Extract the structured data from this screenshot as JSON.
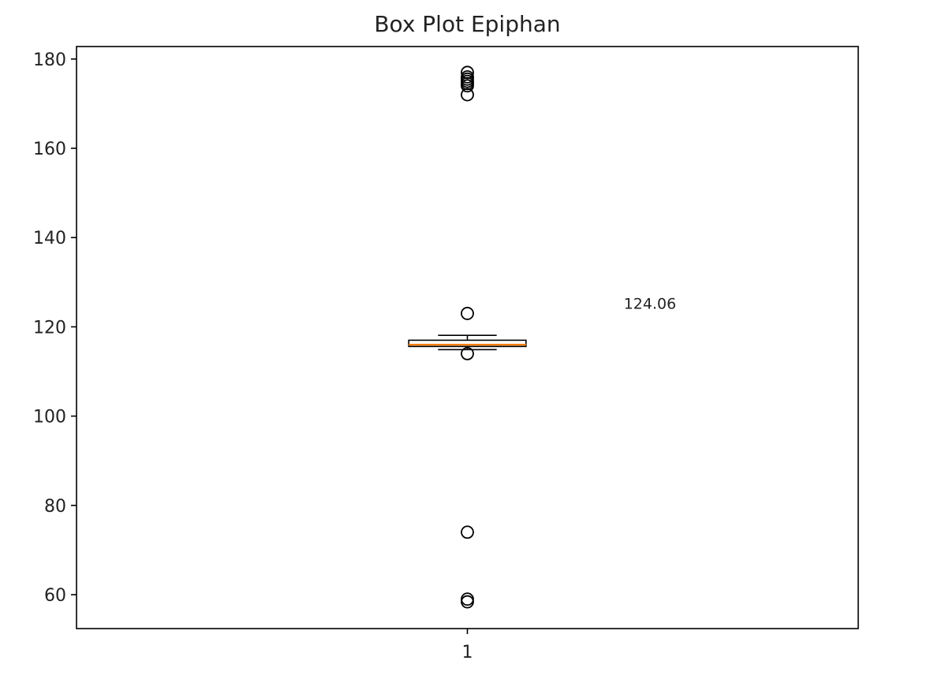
{
  "chart_data": {
    "type": "box",
    "title": "Box Plot Epiphan",
    "xlabel": "",
    "ylabel": "",
    "x_tick_labels": [
      "1"
    ],
    "y_ticks": [
      60,
      80,
      100,
      120,
      140,
      160,
      180
    ],
    "ylim": [
      52.4,
      182.8
    ],
    "grid": false,
    "boxes": [
      {
        "category": "1",
        "q1": 115.6,
        "median": 116.0,
        "q3": 117.0,
        "whisker_low": 114.9,
        "whisker_high": 118.1,
        "outliers": [
          177.0,
          176.0,
          175.5,
          175.0,
          174.5,
          174.0,
          172.0,
          123.0,
          114.0,
          74.0,
          59.0,
          58.4
        ]
      }
    ],
    "annotations": [
      {
        "text": "124.06",
        "x": 1.2,
        "y": 124.06
      }
    ],
    "colors": {
      "box_edge": "#000000",
      "median_line": "#ff7f0e",
      "outlier_edge": "#000000",
      "axes": "#000000",
      "text": "#222222"
    }
  }
}
